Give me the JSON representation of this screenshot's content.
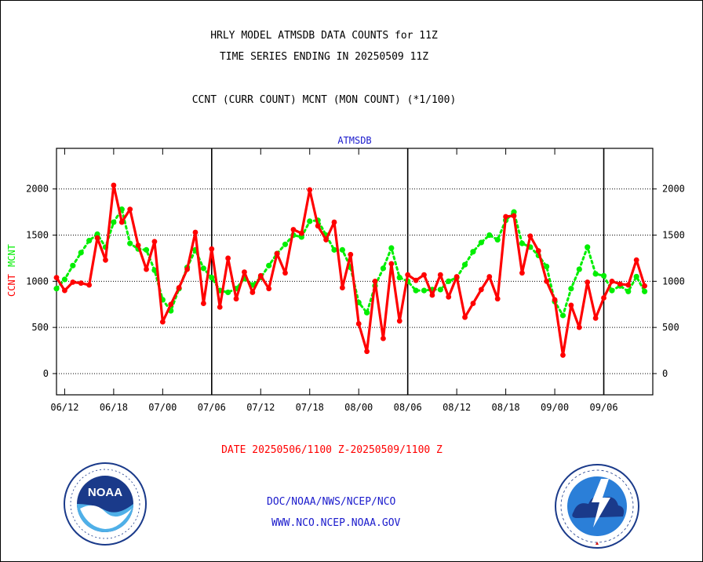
{
  "header": {
    "title_line1": "HRLY MODEL ATMSDB DATA COUNTS for 11Z",
    "title_line2": "TIME SERIES ENDING IN 20250509 11Z",
    "subtitle": "CCNT (CURR COUNT) MCNT (MON COUNT) (*1/100)"
  },
  "footer": {
    "date_range": "DATE 20250506/1100 Z-20250509/1100 Z",
    "credit_line1": "DOC/NOAA/NWS/NCEP/NCO",
    "credit_line2": "WWW.NCO.NCEP.NOAA.GOV"
  },
  "logos": {
    "left": "noaa-logo",
    "right": "national-weather-service-logo"
  },
  "chart_data": {
    "type": "line",
    "title": "ATMSDB",
    "ylabel_left": "CCNT",
    "ylabel_right": "MCNT",
    "yticks": [
      0,
      500,
      1000,
      1500,
      2000
    ],
    "ylim": [
      -230,
      2440
    ],
    "xlim": [
      0,
      73
    ],
    "xticks": [
      {
        "x": 1,
        "label": "06/12"
      },
      {
        "x": 7,
        "label": "06/18"
      },
      {
        "x": 13,
        "label": "07/00"
      },
      {
        "x": 19,
        "label": "07/06"
      },
      {
        "x": 25,
        "label": "07/12"
      },
      {
        "x": 31,
        "label": "07/18"
      },
      {
        "x": 37,
        "label": "08/00"
      },
      {
        "x": 43,
        "label": "08/06"
      },
      {
        "x": 49,
        "label": "08/12"
      },
      {
        "x": 55,
        "label": "08/18"
      },
      {
        "x": 61,
        "label": "09/00"
      },
      {
        "x": 67,
        "label": "09/06"
      }
    ],
    "day_boundaries": [
      19,
      43,
      67
    ],
    "grid": true,
    "series": [
      {
        "name": "CCNT",
        "color": "#ff0000",
        "values": [
          1040,
          900,
          990,
          980,
          960,
          1470,
          1230,
          2040,
          1640,
          1780,
          1390,
          1130,
          1430,
          560,
          750,
          930,
          1130,
          1530,
          760,
          1350,
          720,
          1250,
          810,
          1100,
          880,
          1060,
          920,
          1300,
          1090,
          1560,
          1520,
          1990,
          1600,
          1450,
          1640,
          930,
          1290,
          540,
          240,
          1000,
          380,
          1190,
          570,
          1070,
          1010,
          1070,
          850,
          1070,
          830,
          1050,
          610,
          760,
          910,
          1050,
          810,
          1700,
          1710,
          1090,
          1490,
          1330,
          1000,
          800,
          200,
          740,
          500,
          990,
          600,
          820,
          1000,
          970,
          960,
          1230,
          950
        ]
      },
      {
        "name": "MCNT",
        "color": "#00ee00",
        "values": [
          920,
          1020,
          1170,
          1310,
          1440,
          1510,
          1370,
          1640,
          1780,
          1410,
          1350,
          1340,
          1120,
          800,
          680,
          920,
          1150,
          1340,
          1140,
          1040,
          900,
          880,
          920,
          1030,
          960,
          1040,
          1170,
          1300,
          1400,
          1500,
          1480,
          1650,
          1660,
          1500,
          1340,
          1340,
          1150,
          770,
          660,
          950,
          1140,
          1360,
          1040,
          1000,
          900,
          900,
          910,
          910,
          1000,
          1040,
          1180,
          1320,
          1420,
          1500,
          1450,
          1660,
          1750,
          1410,
          1370,
          1280,
          1160,
          780,
          630,
          920,
          1130,
          1370,
          1080,
          1060,
          900,
          950,
          890,
          1050,
          890
        ]
      }
    ]
  }
}
